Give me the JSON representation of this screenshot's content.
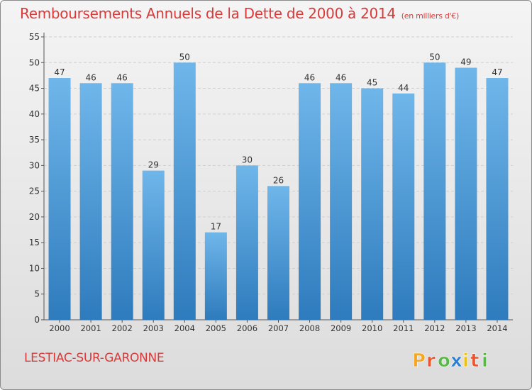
{
  "title": "Remboursements Annuels de la Dette de 2000 à 2014",
  "unit_label": "(en milliers d'€)",
  "commune": "LESTIAC-SUR-GARONNE",
  "logo": {
    "letters": [
      "P",
      "r",
      "o",
      "x",
      "i",
      "t",
      "i"
    ],
    "colors": [
      "#f5a623",
      "#e8552f",
      "#58b847",
      "#2f7fd0",
      "#f2c200",
      "#e8552f",
      "#58b847"
    ]
  },
  "colors": {
    "bar_top": "#6fb6ea",
    "bar_bottom": "#2e7bbd",
    "title": "#d93a3a",
    "grid": "#cfcfcf"
  },
  "chart_data": {
    "type": "bar",
    "categories": [
      "2000",
      "2001",
      "2002",
      "2003",
      "2004",
      "2005",
      "2006",
      "2007",
      "2008",
      "2009",
      "2010",
      "2011",
      "2012",
      "2013",
      "2014"
    ],
    "values": [
      47,
      46,
      46,
      29,
      50,
      17,
      30,
      26,
      46,
      46,
      45,
      44,
      50,
      49,
      47
    ],
    "ylim": [
      0,
      55
    ],
    "yticks": [
      0,
      5,
      10,
      15,
      20,
      25,
      30,
      35,
      40,
      45,
      50,
      55
    ],
    "grid": true,
    "legend": "none"
  }
}
